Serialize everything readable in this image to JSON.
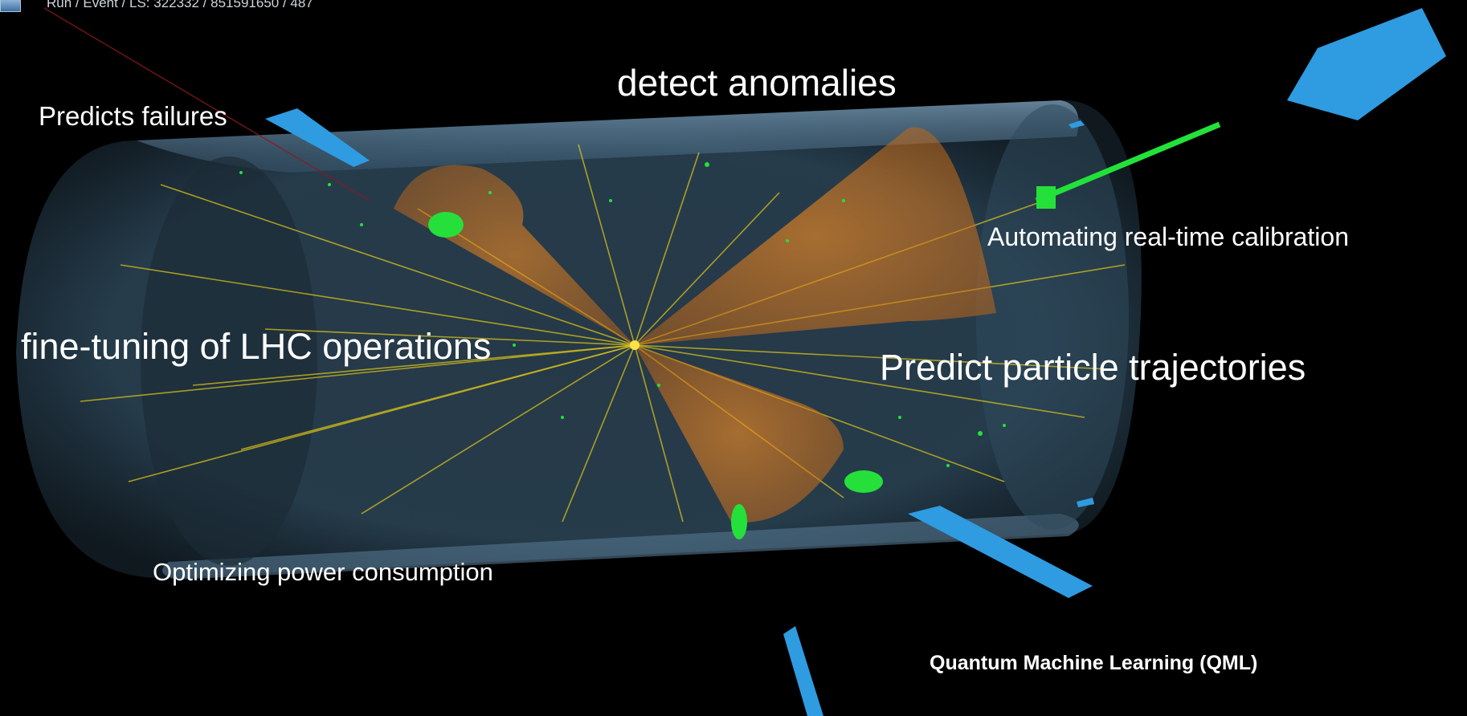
{
  "header": {
    "run_event_ls": "Run / Event / LS: 322332 / 851591650 / 487"
  },
  "labels": {
    "detect_anomalies": "detect anomalies",
    "predicts_failures": "Predicts failures",
    "automating_calibration": "Automating real-time calibration",
    "fine_tuning": "fine-tuning of LHC operations",
    "predict_trajectories": "Predict particle trajectories",
    "optimizing_power": "Optimizing power consumption",
    "qml": "Quantum Machine Learning (QML)"
  },
  "colors": {
    "background": "#000000",
    "detector_barrel": "#3a5a72",
    "jet_cone": "#e07a1c",
    "track": "#e6d21a",
    "hits": "#22dd33",
    "muon_chamber": "#2f9be0",
    "label_text": "#ffffff"
  }
}
